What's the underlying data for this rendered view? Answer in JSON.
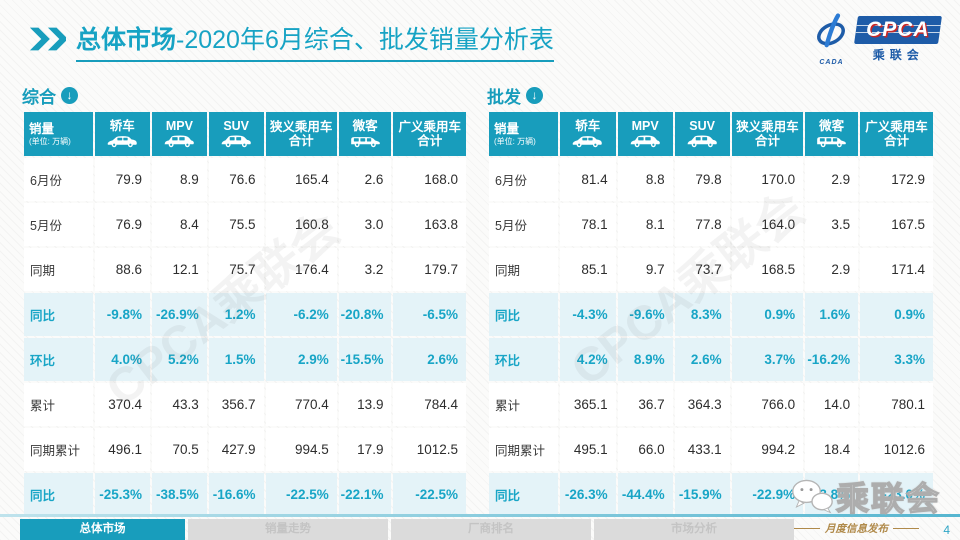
{
  "page": {
    "title_bold": "总体市场",
    "title_rest": "-2020年6月综合、批发销量分析表",
    "page_number": "4"
  },
  "logo": {
    "cpca_text": "CPCA",
    "cada_text": "CADA",
    "sub_text": "乘联会"
  },
  "first_col": {
    "title": "销量",
    "subtitle": "(单位: 万辆)"
  },
  "columns": [
    {
      "label": "轿车",
      "icon": "sedan-icon"
    },
    {
      "label": "MPV",
      "icon": "mpv-icon"
    },
    {
      "label": "SUV",
      "icon": "suv-icon"
    },
    {
      "label": "狭义乘用车合计",
      "icon": null
    },
    {
      "label": "微客",
      "icon": "van-icon"
    },
    {
      "label": "广义乘用车合计",
      "icon": null
    }
  ],
  "tables": [
    {
      "id": "comprehensive",
      "section_label": "综合",
      "rows": [
        {
          "label": "6月份",
          "highlight": false,
          "values": [
            "79.9",
            "8.9",
            "76.6",
            "165.4",
            "2.6",
            "168.0"
          ]
        },
        {
          "label": "5月份",
          "highlight": false,
          "values": [
            "76.9",
            "8.4",
            "75.5",
            "160.8",
            "3.0",
            "163.8"
          ]
        },
        {
          "label": "同期",
          "highlight": false,
          "values": [
            "88.6",
            "12.1",
            "75.7",
            "176.4",
            "3.2",
            "179.7"
          ]
        },
        {
          "label": "同比",
          "highlight": true,
          "values": [
            "-9.8%",
            "-26.9%",
            "1.2%",
            "-6.2%",
            "-20.8%",
            "-6.5%"
          ]
        },
        {
          "label": "环比",
          "highlight": true,
          "values": [
            "4.0%",
            "5.2%",
            "1.5%",
            "2.9%",
            "-15.5%",
            "2.6%"
          ]
        },
        {
          "label": "累计",
          "highlight": false,
          "values": [
            "370.4",
            "43.3",
            "356.7",
            "770.4",
            "13.9",
            "784.4"
          ]
        },
        {
          "label": "同期累计",
          "highlight": false,
          "values": [
            "496.1",
            "70.5",
            "427.9",
            "994.5",
            "17.9",
            "1012.5"
          ]
        },
        {
          "label": "同比",
          "highlight": true,
          "values": [
            "-25.3%",
            "-38.5%",
            "-16.6%",
            "-22.5%",
            "-22.1%",
            "-22.5%"
          ]
        }
      ]
    },
    {
      "id": "wholesale",
      "section_label": "批发",
      "rows": [
        {
          "label": "6月份",
          "highlight": false,
          "values": [
            "81.4",
            "8.8",
            "79.8",
            "170.0",
            "2.9",
            "172.9"
          ]
        },
        {
          "label": "5月份",
          "highlight": false,
          "values": [
            "78.1",
            "8.1",
            "77.8",
            "164.0",
            "3.5",
            "167.5"
          ]
        },
        {
          "label": "同期",
          "highlight": false,
          "values": [
            "85.1",
            "9.7",
            "73.7",
            "168.5",
            "2.9",
            "171.4"
          ]
        },
        {
          "label": "同比",
          "highlight": true,
          "values": [
            "-4.3%",
            "-9.6%",
            "8.3%",
            "0.9%",
            "1.6%",
            "0.9%"
          ]
        },
        {
          "label": "环比",
          "highlight": true,
          "values": [
            "4.2%",
            "8.9%",
            "2.6%",
            "3.7%",
            "-16.2%",
            "3.3%"
          ]
        },
        {
          "label": "累计",
          "highlight": false,
          "values": [
            "365.1",
            "36.7",
            "364.3",
            "766.0",
            "14.0",
            "780.1"
          ]
        },
        {
          "label": "同期累计",
          "highlight": false,
          "values": [
            "495.1",
            "66.0",
            "433.1",
            "994.2",
            "18.4",
            "1012.6"
          ]
        },
        {
          "label": "同比",
          "highlight": true,
          "values": [
            "-26.3%",
            "-44.4%",
            "-15.9%",
            "-22.9%",
            "-23.8%",
            "-23.0%"
          ]
        }
      ]
    }
  ],
  "footer": {
    "tabs": [
      {
        "label": "总体市场",
        "active": true
      },
      {
        "label": "销量走势",
        "active": false
      },
      {
        "label": "厂商排名",
        "active": false
      },
      {
        "label": "市场分析",
        "active": false
      }
    ]
  },
  "watermark": {
    "table_text": "CPCA乘联会",
    "corner_text": "乘联会",
    "corner_sub": "月度信息发布"
  },
  "colors": {
    "accent": "#189DBC",
    "pct_text": "#18A5C6",
    "highlight_bg": "#E4F3F8",
    "logo_blue": "#1E5CA8",
    "logo_red": "#C62828",
    "gold": "#B08A4A"
  }
}
